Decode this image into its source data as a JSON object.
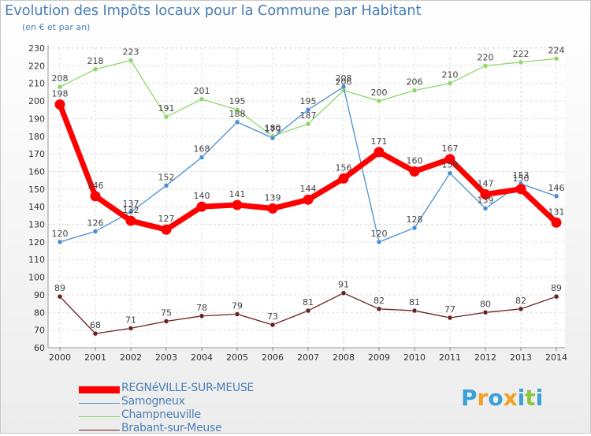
{
  "header": {
    "title": "Evolution des Impôts locaux pour la Commune par Habitant",
    "subtitle": "(en € et par an)"
  },
  "logo": {
    "letters": [
      "P",
      "r",
      "o",
      "x",
      "i",
      "t",
      "i"
    ],
    "colors": [
      "#3aa0d8",
      "#f2a01e",
      "#3aa0d8",
      "#f2a01e",
      "#3aa0d8",
      "#8cc63f",
      "#3aa0d8"
    ]
  },
  "chart_data": {
    "type": "line",
    "x": [
      "2000",
      "2001",
      "2002",
      "2003",
      "2004",
      "2005",
      "2006",
      "2007",
      "2008",
      "2009",
      "2010",
      "2011",
      "2012",
      "2013",
      "2014"
    ],
    "ylim": [
      60,
      230
    ],
    "yticks": [
      60,
      70,
      80,
      90,
      100,
      110,
      120,
      130,
      140,
      150,
      160,
      170,
      180,
      190,
      200,
      210,
      220,
      230
    ],
    "grid": true,
    "legend_position": "bottom-left",
    "series": [
      {
        "name": "REGNéVILLE-SUR-MEUSE",
        "color": "#ff0000",
        "values": [
          198,
          146,
          132,
          127,
          140,
          141,
          139,
          144,
          156,
          171,
          160,
          167,
          147,
          150,
          131
        ]
      },
      {
        "name": "Samogneux",
        "color": "#4a8fd0",
        "values": [
          120,
          126,
          137,
          152,
          168,
          188,
          179,
          195,
          208,
          120,
          128,
          159,
          139,
          153,
          146
        ]
      },
      {
        "name": "Champneuville",
        "color": "#8ed66a",
        "values": [
          208,
          218,
          223,
          191,
          201,
          195,
          180,
          187,
          206,
          200,
          206,
          210,
          220,
          222,
          224
        ]
      },
      {
        "name": "Brabant-sur-Meuse",
        "color": "#6a1f1f",
        "values": [
          89,
          68,
          71,
          75,
          78,
          79,
          73,
          81,
          91,
          82,
          81,
          77,
          80,
          82,
          89
        ]
      }
    ]
  }
}
